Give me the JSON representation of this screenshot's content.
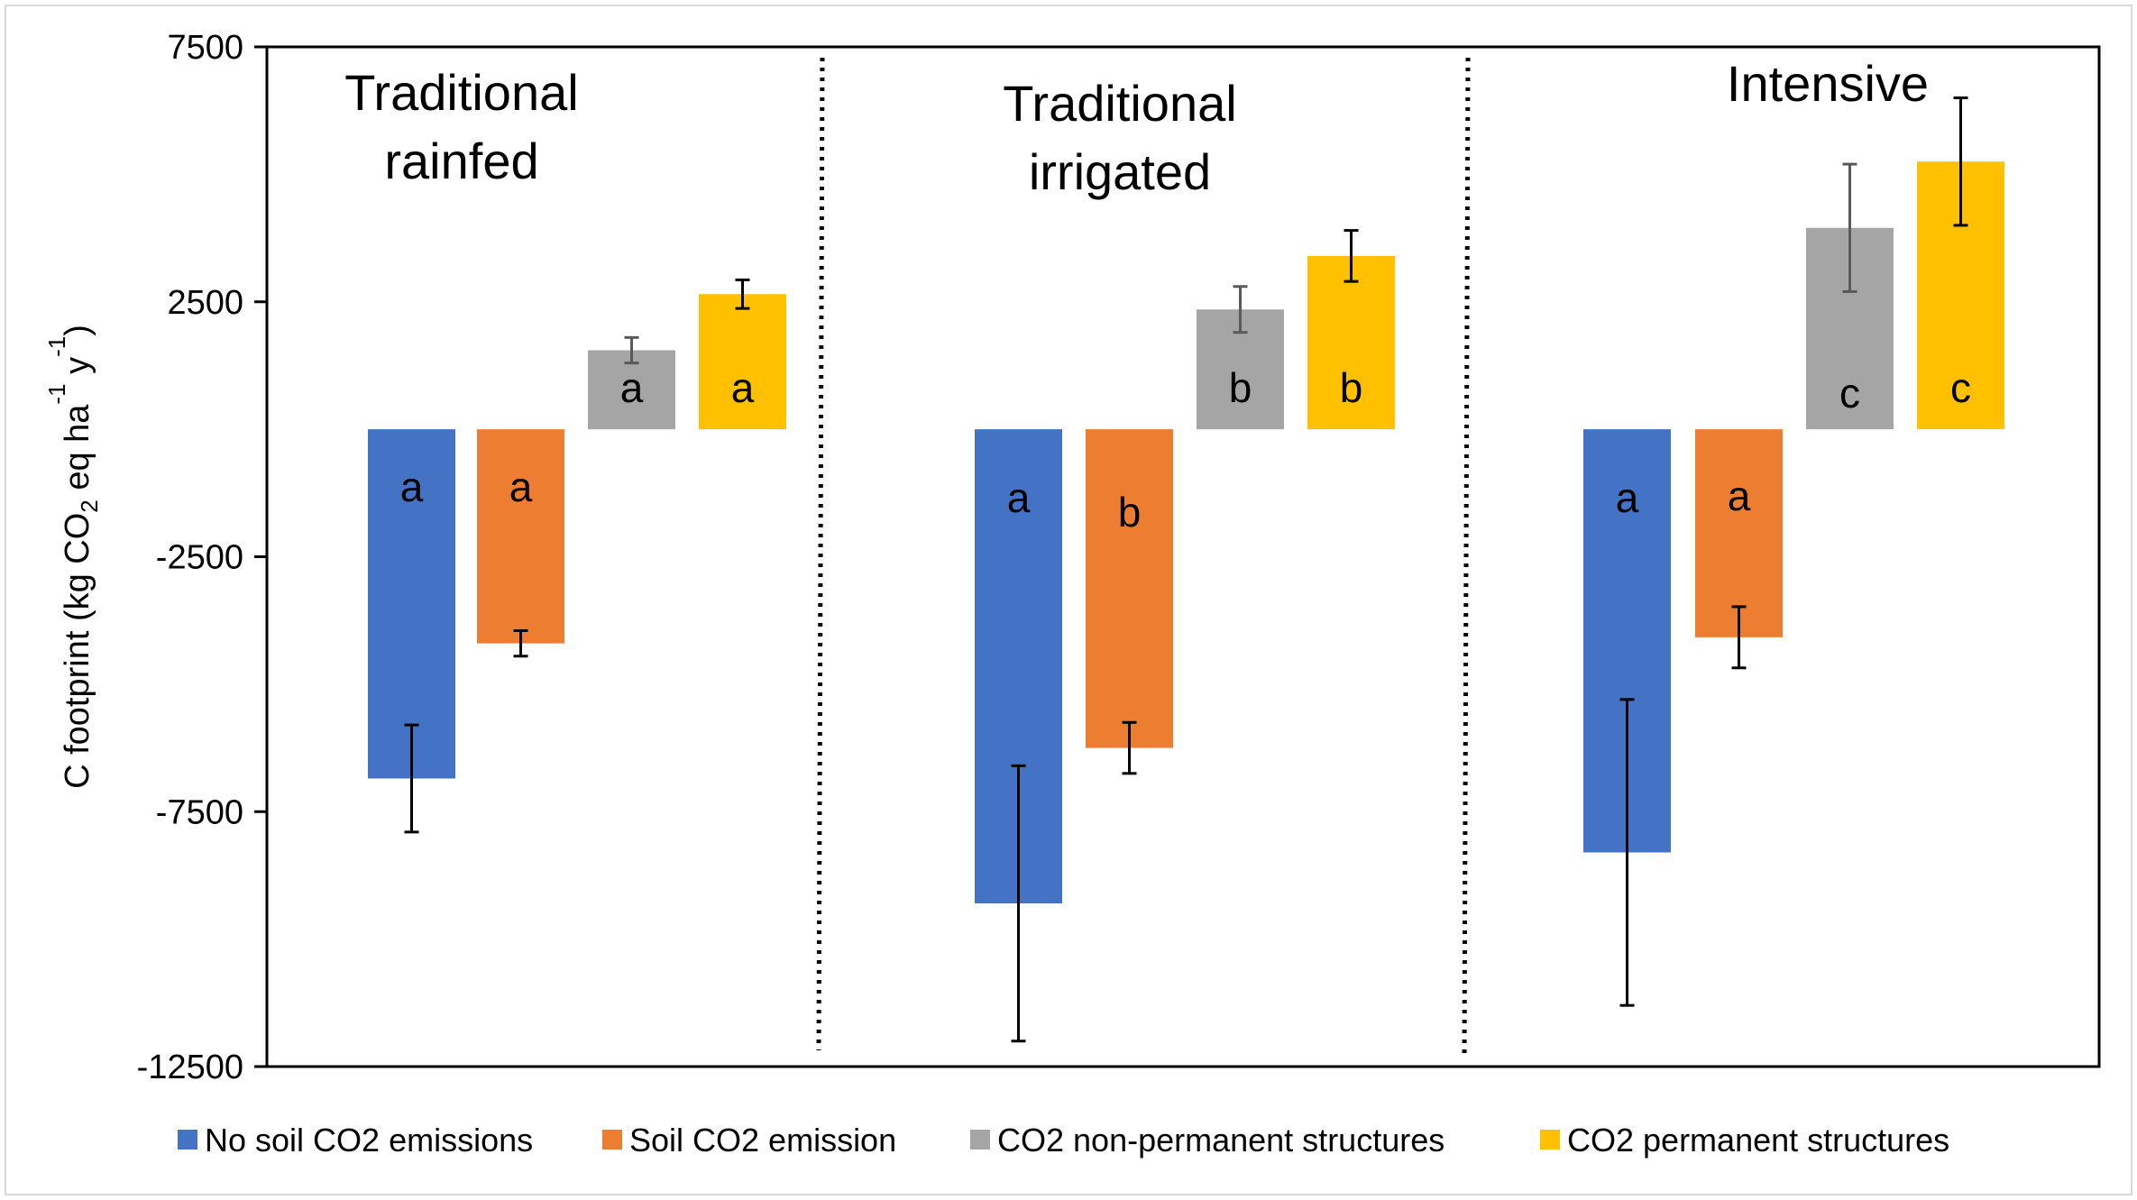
{
  "chart_data": {
    "type": "bar",
    "ylabel_parts": [
      "C footprint (kg CO",
      "2",
      " eq ha",
      "-1",
      " y",
      "-1",
      ")"
    ],
    "ylim": [
      -12500,
      7500
    ],
    "yticks": [
      "7500",
      "2500",
      "-2500",
      "-7500",
      "-12500"
    ],
    "grid": false,
    "legend_position": "bottom",
    "groups": [
      {
        "title_lines": [
          "Traditional",
          "rainfed"
        ]
      },
      {
        "title_lines": [
          "Traditional",
          "irrigated"
        ]
      },
      {
        "title_lines": [
          "Intensive"
        ]
      }
    ],
    "series": [
      {
        "name": "No soil CO2 emissions",
        "color": "#4472C4",
        "values": [
          -6850,
          -9300,
          -8300
        ],
        "errors": [
          1050,
          2700,
          3000
        ],
        "letters": [
          "a",
          "a",
          "a"
        ]
      },
      {
        "name": "Soil CO2 emission",
        "color": "#ED7D31",
        "values": [
          -4200,
          -6250,
          -4080
        ],
        "errors": [
          250,
          500,
          600
        ],
        "letters": [
          "a",
          "b",
          "a"
        ]
      },
      {
        "name": "CO2 non-permanent structures",
        "color": "#A5A5A5",
        "values": [
          1550,
          2350,
          3950
        ],
        "errors": [
          250,
          450,
          1250
        ],
        "letters": [
          "a",
          "b",
          "c"
        ]
      },
      {
        "name": "CO2 permanent structures",
        "color": "#FFC000",
        "values": [
          2650,
          3400,
          5250
        ],
        "errors": [
          280,
          500,
          1250
        ],
        "letters": [
          "a",
          "b",
          "c"
        ]
      }
    ]
  }
}
